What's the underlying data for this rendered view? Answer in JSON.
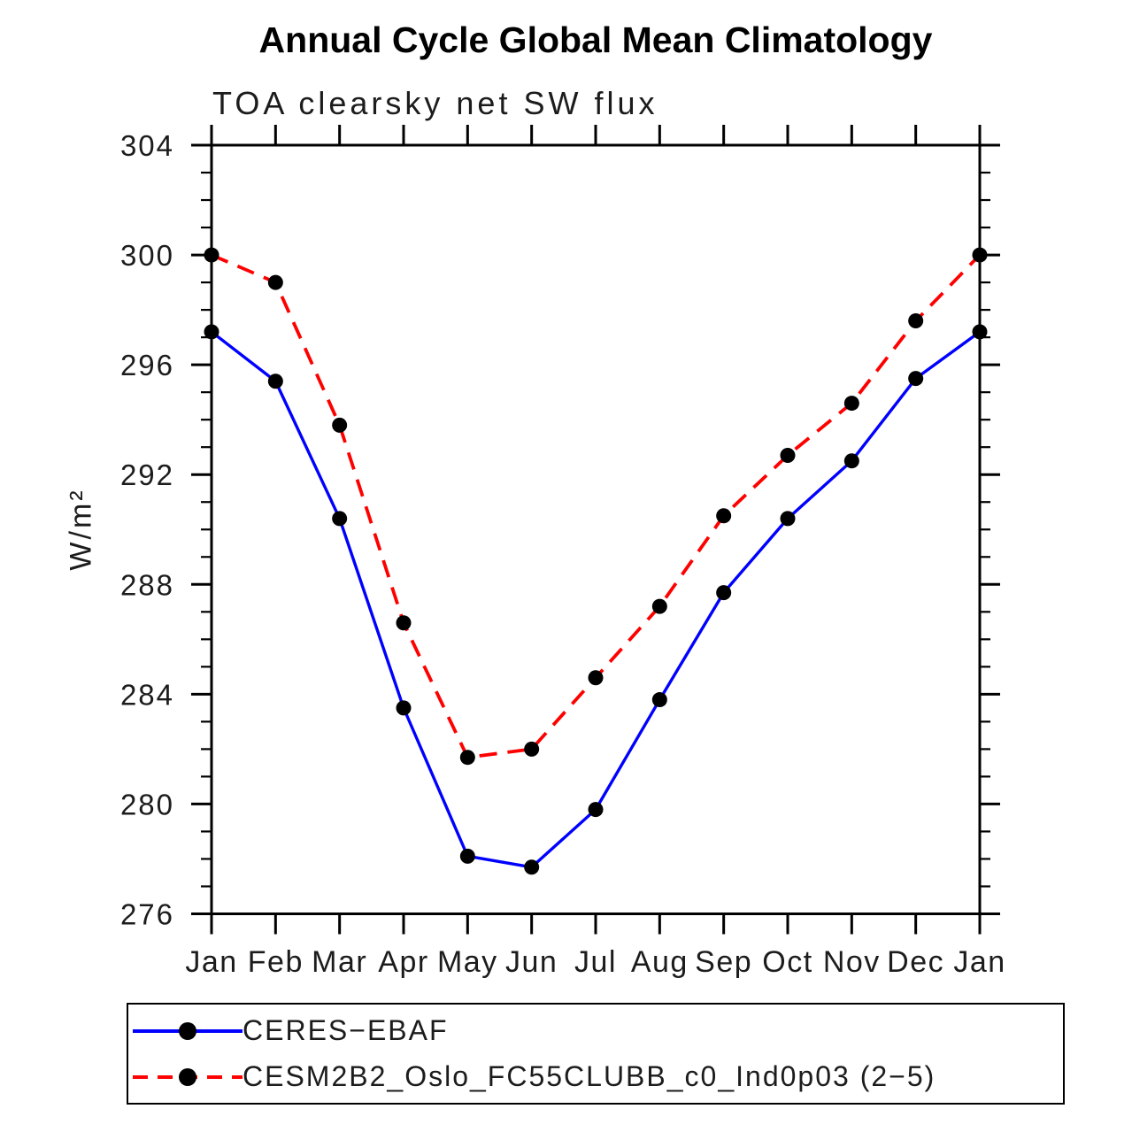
{
  "title": "Annual Cycle Global Mean Climatology",
  "subtitle": "TOA clearsky net SW flux",
  "y_axis_label": "W/m²",
  "colors": {
    "axis": "#000000",
    "marker": "#000000",
    "ceres_line": "#0000ff",
    "cesm_line": "#ff0000",
    "background": "#ffffff"
  },
  "chart_data": {
    "type": "line",
    "title": "Annual Cycle Global Mean Climatology",
    "subtitle": "TOA clearsky net SW flux",
    "xlabel": "",
    "ylabel": "W/m²",
    "x_tick_labels": [
      "Jan",
      "Feb",
      "Mar",
      "Apr",
      "May",
      "Jun",
      "Jul",
      "Aug",
      "Sep",
      "Oct",
      "Nov",
      "Dec",
      "Jan"
    ],
    "ylim": [
      276,
      304
    ],
    "ytick_major_interval": 4,
    "ytick_minor_interval": 1,
    "ytick_major_labels": [
      276,
      280,
      284,
      288,
      292,
      296,
      300,
      304
    ],
    "grid": false,
    "legend_position": "bottom",
    "marker": "filled-black-circle",
    "series": [
      {
        "name": "CERES−EBAF",
        "color": "#0000ff",
        "line_style": "solid",
        "values": [
          297.2,
          295.4,
          290.4,
          283.5,
          278.1,
          277.7,
          279.8,
          283.8,
          287.7,
          290.4,
          292.5,
          295.5,
          297.2
        ]
      },
      {
        "name": "CESM2B2_Oslo_FC55CLUBB_c0_Ind0p03 (2−5)",
        "color": "#ff0000",
        "line_style": "dashed",
        "values": [
          300.0,
          299.0,
          293.8,
          286.6,
          281.7,
          282.0,
          284.6,
          287.2,
          290.5,
          292.7,
          294.6,
          297.6,
          300.0
        ]
      }
    ]
  }
}
